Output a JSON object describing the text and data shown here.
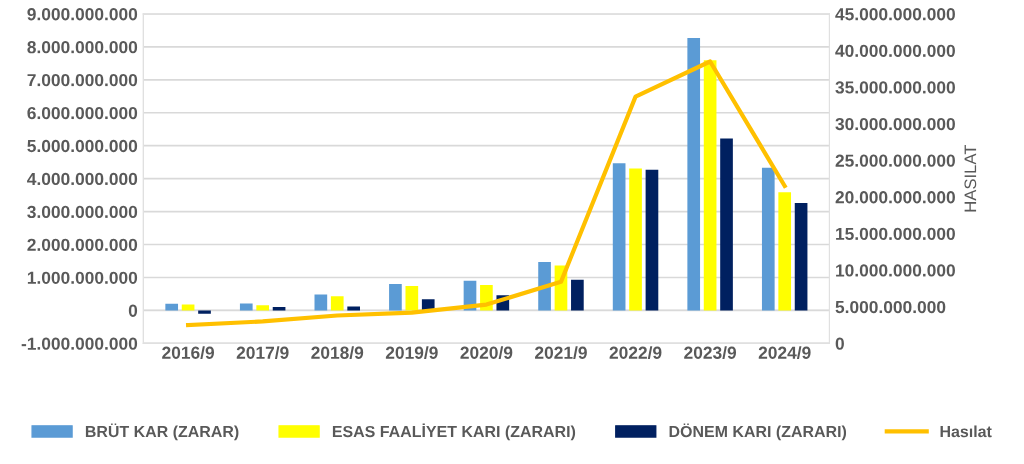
{
  "chart_data": {
    "type": "bar",
    "y2label": "HASILAT",
    "categories": [
      "2016/9",
      "2017/9",
      "2018/9",
      "2019/9",
      "2020/9",
      "2021/9",
      "2022/9",
      "2023/9",
      "2024/9"
    ],
    "series": [
      {
        "name": "BRÜT KAR (ZARAR)",
        "color": "#5b9bd5",
        "values": [
          200000000,
          210000000,
          480000000,
          800000000,
          900000000,
          1470000000,
          4470000000,
          8270000000,
          4330000000
        ]
      },
      {
        "name": "ESAS FAALİYET KARI (ZARARI)",
        "color": "#ffff00",
        "values": [
          180000000,
          160000000,
          430000000,
          740000000,
          770000000,
          1360000000,
          4310000000,
          7590000000,
          3590000000
        ]
      },
      {
        "name": "DÖNEM KARI (ZARARI)",
        "color": "#002060",
        "values": [
          -100000000,
          100000000,
          120000000,
          340000000,
          460000000,
          930000000,
          4270000000,
          5220000000,
          3260000000
        ]
      },
      {
        "name": "Hasılat",
        "type": "line",
        "axis": "y2",
        "color": "#ffc000",
        "values": [
          2500000000,
          3000000000,
          3800000000,
          4200000000,
          5300000000,
          8400000000,
          33700000000,
          38500000000,
          21500000000
        ]
      }
    ],
    "ylim": [
      -1000000000,
      9000000000
    ],
    "yticks": [
      {
        "value": -1000000000,
        "label": "-1.000.000.000"
      },
      0,
      {
        "value": 1000000000,
        "label": "1.000.000.000"
      },
      {
        "value": 2000000000,
        "label": "2.000.000.000"
      },
      {
        "value": 3000000000,
        "label": "3.000.000.000"
      },
      {
        "value": 4000000000,
        "label": "4.000.000.000"
      },
      {
        "value": 5000000000,
        "label": "5.000.000.000"
      },
      {
        "value": 6000000000,
        "label": "6.000.000.000"
      },
      {
        "value": 7000000000,
        "label": "7.000.000.000"
      },
      {
        "value": 8000000000,
        "label": "8.000.000.000"
      },
      {
        "value": 9000000000,
        "label": "9.000.000.000"
      }
    ],
    "y2lim": [
      0,
      45000000000
    ],
    "y2ticks": [
      0,
      {
        "value": 5000000000,
        "label": "5.000.000.000"
      },
      {
        "value": 10000000000,
        "label": "10.000.000.000"
      },
      {
        "value": 15000000000,
        "label": "15.000.000.000"
      },
      {
        "value": 20000000000,
        "label": "20.000.000.000"
      },
      {
        "value": 25000000000,
        "label": "25.000.000.000"
      },
      {
        "value": 30000000000,
        "label": "30.000.000.000"
      },
      {
        "value": 35000000000,
        "label": "35.000.000.000"
      },
      {
        "value": 40000000000,
        "label": "40.000.000.000"
      },
      {
        "value": 45000000000,
        "label": "45.000.000.000"
      }
    ],
    "grid": "y",
    "legend": "bottom",
    "marker": "none",
    "line_style": "solid"
  }
}
